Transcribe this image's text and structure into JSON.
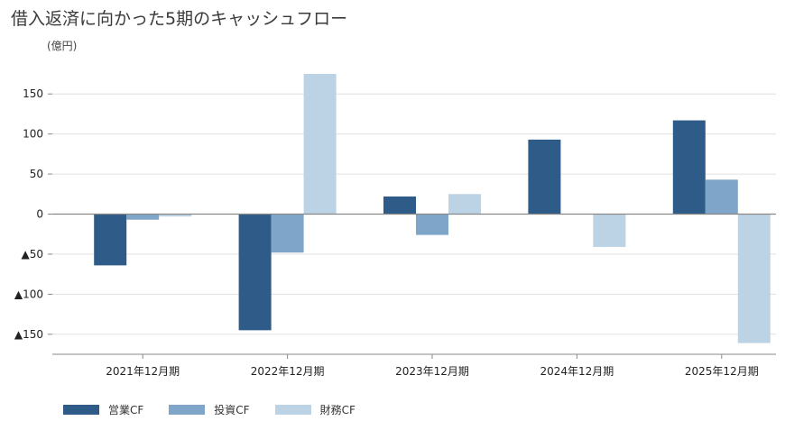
{
  "title": "借入返済に向かった5期のキャッシュフロー",
  "unit_label": "(億円)",
  "colors": {
    "operating": "#2e5b87",
    "investing": "#7fa5c8",
    "financing": "#bcd3e5",
    "grid": "#e0e0e0",
    "axis": "#888888"
  },
  "chart_data": {
    "type": "bar",
    "title": "借入返済に向かった5期のキャッシュフロー",
    "ylabel": "(億円)",
    "xlabel": "",
    "categories": [
      "2021年12月期",
      "2022年12月期",
      "2023年12月期",
      "2024年12月期",
      "2025年12月期"
    ],
    "series": [
      {
        "name": "営業CF",
        "values": [
          -64,
          -145,
          22,
          93,
          117
        ]
      },
      {
        "name": "投資CF",
        "values": [
          -7,
          -48,
          -26,
          0,
          43
        ]
      },
      {
        "name": "財務CF",
        "values": [
          -3,
          175,
          25,
          -41,
          -161
        ]
      }
    ],
    "ylim": [
      -175,
      175
    ],
    "yticks": [
      150,
      100,
      50,
      0,
      -50,
      -100,
      -150
    ],
    "ytick_labels": [
      "150",
      "100",
      "50",
      "0",
      "▲50",
      "▲100",
      "▲150"
    ],
    "grid": true,
    "legend": "bottom-left"
  }
}
